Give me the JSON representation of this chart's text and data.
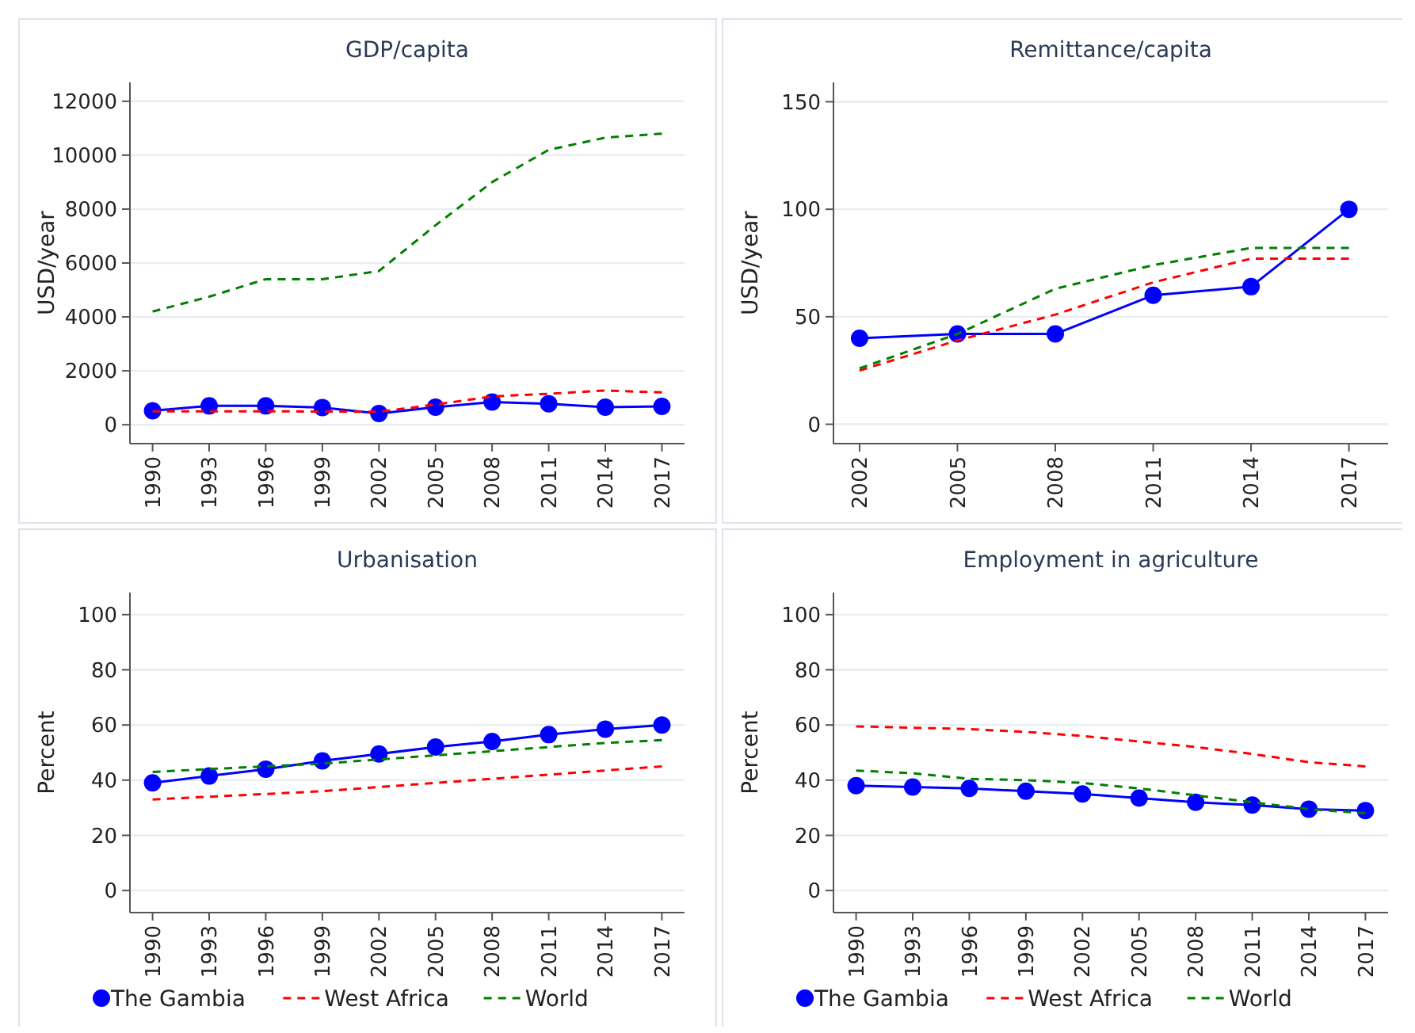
{
  "chart_data": [
    {
      "type": "line",
      "title": "GDP/capita",
      "ylabel": "USD/year",
      "x": [
        1990,
        1993,
        1996,
        1999,
        2002,
        2005,
        2008,
        2011,
        2014,
        2017
      ],
      "xlim": [
        1988.8,
        2018.2
      ],
      "xticks": [
        1990,
        1993,
        1996,
        1999,
        2002,
        2005,
        2008,
        2011,
        2014,
        2017
      ],
      "ylim": [
        -700,
        12700
      ],
      "yticks": [
        0,
        2000,
        4000,
        6000,
        8000,
        10000,
        12000
      ],
      "grid": "y",
      "legend": false,
      "series": [
        {
          "color": "#0000ff",
          "marker": "circle",
          "line_style": "solid",
          "values": [
            520,
            700,
            700,
            640,
            420,
            650,
            840,
            780,
            650,
            680
          ]
        },
        {
          "color": "#ff0000",
          "marker": "none",
          "line_style": "dashed",
          "values": [
            500,
            500,
            500,
            490,
            480,
            750,
            1050,
            1150,
            1270,
            1200
          ]
        },
        {
          "color": "#008000",
          "marker": "none",
          "line_style": "dashed",
          "values": [
            4200,
            4750,
            5400,
            5400,
            5700,
            7400,
            9000,
            10200,
            10650,
            10800
          ]
        }
      ]
    },
    {
      "type": "line",
      "title": "Remittance/capita",
      "ylabel": "USD/year",
      "x": [
        2002,
        2005,
        2008,
        2011,
        2014,
        2017
      ],
      "xlim": [
        2001.2,
        2018.2
      ],
      "xticks": [
        2002,
        2005,
        2008,
        2011,
        2014,
        2017
      ],
      "ylim": [
        -9,
        159
      ],
      "yticks": [
        0,
        50,
        100,
        150
      ],
      "grid": "y",
      "legend": false,
      "series": [
        {
          "color": "#0000ff",
          "marker": "circle",
          "line_style": "solid",
          "values": [
            40,
            42,
            42,
            60,
            64,
            100
          ]
        },
        {
          "color": "#ff0000",
          "marker": "none",
          "line_style": "dashed",
          "values": [
            25,
            39,
            51,
            66,
            77,
            77
          ]
        },
        {
          "color": "#008000",
          "marker": "none",
          "line_style": "dashed",
          "values": [
            26,
            42,
            63,
            74,
            82,
            82
          ]
        }
      ]
    },
    {
      "type": "line",
      "title": "Urbanisation",
      "ylabel": "Percent",
      "x": [
        1990,
        1993,
        1996,
        1999,
        2002,
        2005,
        2008,
        2011,
        2014,
        2017
      ],
      "xlim": [
        1988.8,
        2018.2
      ],
      "xticks": [
        1990,
        1993,
        1996,
        1999,
        2002,
        2005,
        2008,
        2011,
        2014,
        2017
      ],
      "ylim": [
        -8,
        108
      ],
      "yticks": [
        0,
        20,
        40,
        60,
        80,
        100
      ],
      "grid": "y",
      "legend": "bottom",
      "series": [
        {
          "name": "The Gambia",
          "color": "#0000ff",
          "marker": "circle",
          "line_style": "solid",
          "values": [
            39,
            41.5,
            44,
            47,
            49.5,
            52,
            54,
            56.5,
            58.5,
            60
          ]
        },
        {
          "name": "West Africa",
          "color": "#ff0000",
          "marker": "none",
          "line_style": "dashed",
          "values": [
            33,
            34,
            35,
            36,
            37.5,
            39,
            40.5,
            42,
            43.5,
            45
          ]
        },
        {
          "name": "World",
          "color": "#008000",
          "marker": "none",
          "line_style": "dashed",
          "values": [
            43,
            44,
            45,
            46,
            47.5,
            49,
            50.5,
            52,
            53.5,
            54.5
          ]
        }
      ]
    },
    {
      "type": "line",
      "title": "Employment in agriculture",
      "ylabel": "Percent",
      "x": [
        1990,
        1993,
        1996,
        1999,
        2002,
        2005,
        2008,
        2011,
        2014,
        2017
      ],
      "xlim": [
        1988.8,
        2018.2
      ],
      "xticks": [
        1990,
        1993,
        1996,
        1999,
        2002,
        2005,
        2008,
        2011,
        2014,
        2017
      ],
      "ylim": [
        -8,
        108
      ],
      "yticks": [
        0,
        20,
        40,
        60,
        80,
        100
      ],
      "grid": "y",
      "legend": "bottom",
      "series": [
        {
          "name": "The Gambia",
          "color": "#0000ff",
          "marker": "circle",
          "line_style": "solid",
          "values": [
            38,
            37.5,
            37,
            36,
            35,
            33.5,
            32,
            31,
            29.5,
            29
          ]
        },
        {
          "name": "West Africa",
          "color": "#ff0000",
          "marker": "none",
          "line_style": "dashed",
          "values": [
            59.5,
            59,
            58.5,
            57.5,
            56,
            54,
            52,
            49.5,
            46.5,
            45
          ]
        },
        {
          "name": "World",
          "color": "#008000",
          "marker": "none",
          "line_style": "dashed",
          "values": [
            43.5,
            42.5,
            40.5,
            40,
            39,
            37,
            34.5,
            32,
            29.5,
            28
          ]
        }
      ]
    }
  ]
}
